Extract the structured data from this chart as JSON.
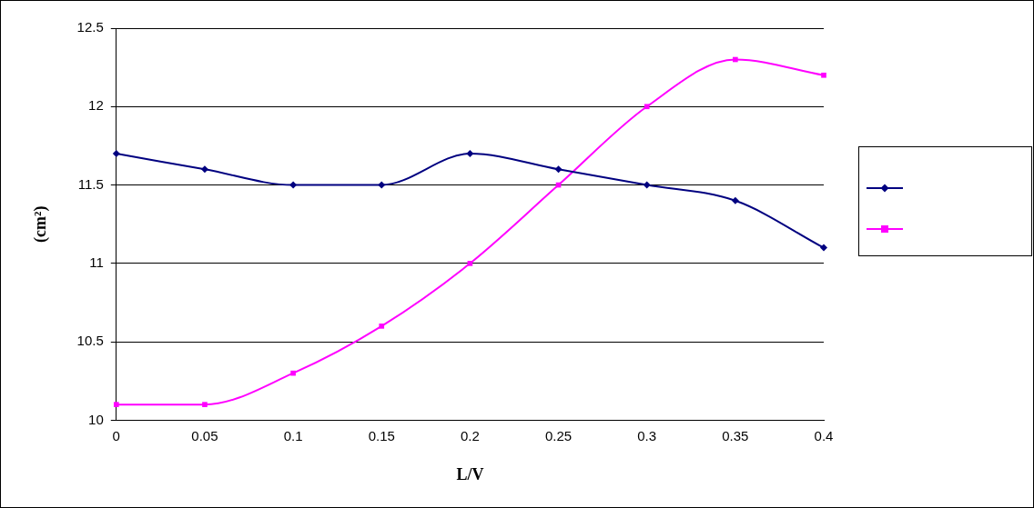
{
  "chart_data": {
    "type": "line",
    "xlabel": "L/V",
    "ylabel": "(cm²)",
    "categories": [
      "0",
      "0.05",
      "0.1",
      "0.15",
      "0.2",
      "0.25",
      "0.3",
      "0.35",
      "0.4"
    ],
    "ylim": [
      10,
      12.5
    ],
    "yticks": [
      10,
      10.5,
      11,
      11.5,
      12,
      12.5
    ],
    "grid": "y",
    "series": [
      {
        "color": "#000080",
        "marker": "diamond",
        "values": [
          11.7,
          11.6,
          11.5,
          11.5,
          11.7,
          11.6,
          11.5,
          11.4,
          11.1
        ]
      },
      {
        "color": "#ff00ff",
        "marker": "square",
        "values": [
          10.1,
          10.1,
          10.3,
          10.6,
          11.0,
          11.5,
          12.0,
          12.3,
          12.2
        ]
      }
    ]
  }
}
